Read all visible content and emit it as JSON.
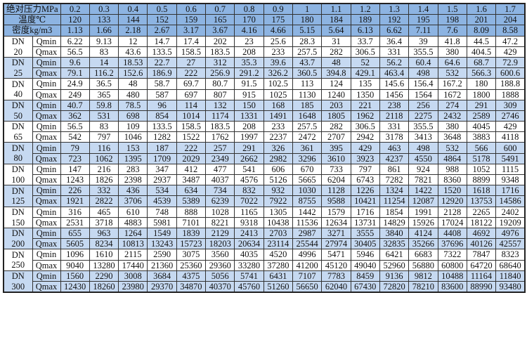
{
  "header": {
    "pressure_label": "绝对压力MPa",
    "temperature_label": "温度℃",
    "density_label": "密度kg/m3",
    "pressures": [
      "0.2",
      "0.3",
      "0.4",
      "0.5",
      "0.6",
      "0.7",
      "0.8",
      "0.9",
      "1",
      "1.1",
      "1.2",
      "1.3",
      "1.4",
      "1.5",
      "1.6",
      "1.7"
    ],
    "temperatures": [
      "120",
      "133",
      "144",
      "152",
      "159",
      "165",
      "170",
      "175",
      "180",
      "184",
      "189",
      "192",
      "195",
      "198",
      "201",
      "204"
    ],
    "densities": [
      "1.13",
      "1.66",
      "2.18",
      "2.67",
      "3.17",
      "3.67",
      "4.16",
      "4.66",
      "5.15",
      "5.64",
      "6.13",
      "6.62",
      "7.11",
      "7.6",
      "8.09",
      "8.58"
    ]
  },
  "dn_prefix": "DN",
  "qmin_label": "Qmin",
  "qmax_label": "Qmax",
  "colors": {
    "header": "#8db4e2",
    "band_blue": "#c6d9f1",
    "band_white": "#ffffff"
  },
  "rows": [
    {
      "dn": "20",
      "qmin": [
        "6.22",
        "9.13",
        "12",
        "14.7",
        "17.4",
        "202",
        "23",
        "25.6",
        "28.3",
        "31",
        "33.7",
        "36.4",
        "39",
        "41.8",
        "44.5",
        "47.2"
      ],
      "qmax": [
        "56.5",
        "83",
        "43.6",
        "133.5",
        "158.5",
        "183.5",
        "208",
        "233",
        "257.5",
        "282",
        "306.5",
        "331",
        "355.5",
        "380",
        "404.5",
        "429"
      ]
    },
    {
      "dn": "25",
      "qmin": [
        "9.6",
        "14",
        "18.53",
        "22.7",
        "27",
        "312",
        "35.3",
        "39.6",
        "43.7",
        "48",
        "52",
        "56.2",
        "60.4",
        "64.6",
        "68.7",
        "72.9"
      ],
      "qmax": [
        "79.1",
        "116.2",
        "152.6",
        "186.9",
        "222",
        "256.9",
        "291.2",
        "326.2",
        "360.5",
        "394.8",
        "429.1",
        "463.4",
        "498",
        "532",
        "566.3",
        "600.6"
      ]
    },
    {
      "dn": "40",
      "qmin": [
        "24.9",
        "36.5",
        "48",
        "58.7",
        "69.7",
        "80.7",
        "91.5",
        "102.5",
        "113",
        "124",
        "135",
        "145.6",
        "156.4",
        "167.2",
        "180",
        "188.8"
      ],
      "qmax": [
        "249",
        "365",
        "480",
        "587",
        "697",
        "807",
        "915",
        "1025",
        "1130",
        "1240",
        "1350",
        "1456",
        "1564",
        "1672",
        "1800",
        "1888"
      ]
    },
    {
      "dn": "50",
      "qmin": [
        "40.7",
        "59.8",
        "78.5",
        "96",
        "114",
        "132",
        "150",
        "168",
        "185",
        "203",
        "221",
        "238",
        "256",
        "274",
        "291",
        "309"
      ],
      "qmax": [
        "362",
        "531",
        "698",
        "854",
        "1014",
        "1174",
        "1331",
        "1491",
        "1648",
        "1805",
        "1962",
        "2118",
        "2275",
        "2432",
        "2589",
        "2746"
      ]
    },
    {
      "dn": "65",
      "qmin": [
        "56.5",
        "83",
        "109",
        "133.5",
        "158.5",
        "183.5",
        "208",
        "233",
        "257.5",
        "282",
        "306.5",
        "331",
        "355.5",
        "380",
        "4045",
        "429"
      ],
      "qmax": [
        "542",
        "797",
        "1046",
        "1282",
        "1522",
        "1762",
        "1997",
        "2237",
        "2472",
        "2707",
        "2942",
        "3178",
        "3413",
        "3648",
        "3883",
        "4118"
      ]
    },
    {
      "dn": "80",
      "qmin": [
        "79",
        "116",
        "153",
        "187",
        "222",
        "257",
        "291",
        "326",
        "361",
        "395",
        "429",
        "463",
        "498",
        "532",
        "566",
        "600"
      ],
      "qmax": [
        "723",
        "1062",
        "1395",
        "1709",
        "2029",
        "2349",
        "2662",
        "2982",
        "3296",
        "3610",
        "3923",
        "4237",
        "4550",
        "4864",
        "5178",
        "5491"
      ]
    },
    {
      "dn": "100",
      "qmin": [
        "147",
        "216",
        "283",
        "347",
        "412",
        "477",
        "541",
        "606",
        "670",
        "733",
        "797",
        "861",
        "924",
        "988",
        "1052",
        "1115"
      ],
      "qmax": [
        "1243",
        "1826",
        "2398",
        "2937",
        "3487",
        "4037",
        "4576",
        "5126",
        "5665",
        "6204",
        "6743",
        "7282",
        "7821",
        "8360",
        "8899",
        "9348"
      ]
    },
    {
      "dn": "125",
      "qmin": [
        "226",
        "332",
        "436",
        "534",
        "634",
        "734",
        "832",
        "932",
        "1030",
        "1128",
        "1226",
        "1324",
        "1422",
        "1520",
        "1618",
        "1716"
      ],
      "qmax": [
        "1921",
        "2822",
        "3706",
        "4539",
        "5389",
        "6239",
        "7022",
        "7922",
        "8755",
        "9588",
        "10421",
        "11254",
        "12087",
        "12920",
        "13753",
        "14586"
      ]
    },
    {
      "dn": "150",
      "qmin": [
        "316",
        "465",
        "610",
        "748",
        "888",
        "1028",
        "1165",
        "1305",
        "1442",
        "1579",
        "1716",
        "1854",
        "1991",
        "2128",
        "2265",
        "2402"
      ],
      "qmax": [
        "2531",
        "3718",
        "4883",
        "5981",
        "7101",
        "8221",
        "9318",
        "10438",
        "11536",
        "12634",
        "13731",
        "14829",
        "15926",
        "17024",
        "18122",
        "19209"
      ]
    },
    {
      "dn": "200",
      "qmin": [
        "655",
        "963",
        "1264",
        "1549",
        "1839",
        "2129",
        "2413",
        "2703",
        "2987",
        "3271",
        "3555",
        "3840",
        "4124",
        "4408",
        "4692",
        "4976"
      ],
      "qmax": [
        "5605",
        "8234",
        "10813",
        "13243",
        "15723",
        "18203",
        "20634",
        "23114",
        "25544",
        "27974",
        "30405",
        "32835",
        "35266",
        "37696",
        "40126",
        "42557"
      ]
    },
    {
      "dn": "250",
      "qmin": [
        "1096",
        "1610",
        "2115",
        "2590",
        "3075",
        "3560",
        "4035",
        "4520",
        "4996",
        "5471",
        "5946",
        "6421",
        "6683",
        "7322",
        "7847",
        "8323"
      ],
      "qmax": [
        "9040",
        "13280",
        "17440",
        "21360",
        "25360",
        "29360",
        "33280",
        "37280",
        "41200",
        "45120",
        "49040",
        "52960",
        "56880",
        "60800",
        "64720",
        "68640"
      ]
    },
    {
      "dn": "300",
      "qmin": [
        "1560",
        "2290",
        "3008",
        "3684",
        "4375",
        "5056",
        "5741",
        "6431",
        "7107",
        "7783",
        "8459",
        "9136",
        "9812",
        "10488",
        "11164",
        "11840"
      ],
      "qmax": [
        "12430",
        "18260",
        "23980",
        "29370",
        "34870",
        "40370",
        "45760",
        "51260",
        "56650",
        "62040",
        "67430",
        "72820",
        "78210",
        "83600",
        "88990",
        "93480"
      ]
    }
  ]
}
